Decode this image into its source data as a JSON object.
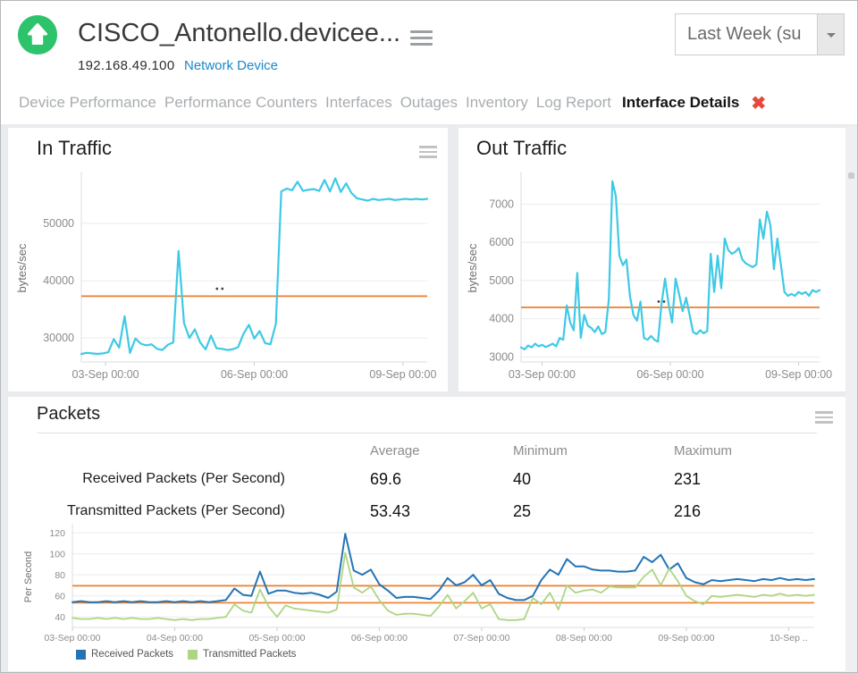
{
  "header": {
    "title": "CISCO_Antonello.devicee...",
    "ip": "192.168.49.100",
    "device_type_link": "Network Device",
    "time_range_value": "Last Week (su",
    "status_color": "#2dc36a",
    "close_icon": "✖"
  },
  "nav": {
    "items": [
      "Device Performance",
      "Performance Counters",
      "Interfaces",
      "Outages",
      "Inventory",
      "Log Report"
    ],
    "active": "Interface Details"
  },
  "packets_table": {
    "title": "Packets",
    "columns": [
      "Average",
      "Minimum",
      "Maximum"
    ],
    "rows": [
      {
        "label": "Received Packets (Per Second)",
        "average": "69.6",
        "minimum": "40",
        "maximum": "231"
      },
      {
        "label": "Transmitted Packets (Per Second)",
        "average": "53.43",
        "minimum": "25",
        "maximum": "216"
      }
    ]
  },
  "chart_data": [
    {
      "id": "in",
      "type": "line",
      "title": "In Traffic",
      "ylabel": "bytes/sec",
      "ymin": 25800,
      "ymax": 58600,
      "yticks": [
        30000,
        40000,
        50000
      ],
      "xticks": [
        {
          "label": "03-Sep 00:00",
          "pos": 0.07
        },
        {
          "label": "06-Sep 00:00",
          "pos": 0.5
        },
        {
          "label": "09-Sep 00:00",
          "pos": 0.93
        }
      ],
      "grid": true,
      "avg_lines": [
        {
          "value": 37300,
          "color": "#ec7f2b"
        }
      ],
      "gap_dots": {
        "pos": 0.4,
        "value": 38600
      },
      "series": [
        {
          "name": "In Traffic",
          "color": "#3ec9e6",
          "width": 2.2,
          "values": [
            27200,
            27400,
            27300,
            27200,
            27300,
            27500,
            29800,
            28300,
            33800,
            27400,
            29900,
            29000,
            28700,
            28900,
            28100,
            27900,
            28800,
            29200,
            45200,
            32600,
            30000,
            31500,
            29200,
            28000,
            30400,
            28200,
            28100,
            27900,
            28000,
            28400,
            30700,
            32300,
            29900,
            31200,
            29100,
            28900,
            32500,
            55600,
            56100,
            55800,
            57300,
            55700,
            55900,
            56000,
            55700,
            57600,
            55600,
            57900,
            55500,
            57000,
            55300,
            54400,
            54200,
            54000,
            54300,
            54100,
            54200,
            54300,
            54100,
            54200,
            54300,
            54200,
            54300,
            54200,
            54300
          ]
        }
      ]
    },
    {
      "id": "out",
      "type": "line",
      "title": "Out Traffic",
      "ylabel": "bytes/sec",
      "ymin": 2870,
      "ymax": 7780,
      "yticks": [
        3000,
        4000,
        5000,
        6000,
        7000
      ],
      "xticks": [
        {
          "label": "03-Sep 00:00",
          "pos": 0.07
        },
        {
          "label": "06-Sep 00:00",
          "pos": 0.5
        },
        {
          "label": "09-Sep 00:00",
          "pos": 0.93
        }
      ],
      "grid": true,
      "avg_lines": [
        {
          "value": 4300,
          "color": "#ec7f2b"
        }
      ],
      "gap_dots": {
        "pos": 0.47,
        "value": 4450
      },
      "series": [
        {
          "name": "Out Traffic",
          "color": "#3ec9e6",
          "width": 2.2,
          "values": [
            3250,
            3200,
            3300,
            3250,
            3350,
            3280,
            3320,
            3260,
            3300,
            3350,
            3280,
            3500,
            3450,
            4350,
            3900,
            3700,
            5200,
            3500,
            4100,
            3820,
            3760,
            3650,
            3800,
            3600,
            3650,
            4500,
            7600,
            7200,
            5650,
            5400,
            5550,
            4600,
            4100,
            3950,
            4450,
            3500,
            3450,
            3550,
            3450,
            3400,
            4400,
            5050,
            4400,
            3900,
            5050,
            4650,
            4200,
            4550,
            4100,
            3650,
            3600,
            3700,
            3620,
            3680,
            5700,
            4700,
            5650,
            4800,
            6100,
            5800,
            5700,
            5750,
            5850,
            5550,
            5450,
            5400,
            5350,
            5420,
            6600,
            6100,
            6800,
            6450,
            5300,
            6100,
            5400,
            4700,
            4600,
            4650,
            4600,
            4700,
            4650,
            4700,
            4600,
            4750,
            4700,
            4750
          ]
        }
      ]
    },
    {
      "id": "pk",
      "type": "line",
      "title": "Packets",
      "ylabel": "Per Second",
      "ymin": 30,
      "ymax": 126,
      "yticks": [
        40,
        60,
        80,
        100,
        120
      ],
      "xticks": [
        {
          "label": "03-Sep 00:00",
          "pos": 0
        },
        {
          "label": "04-Sep 00:00",
          "pos": 0.1379
        },
        {
          "label": "05-Sep 00:00",
          "pos": 0.2759
        },
        {
          "label": "06-Sep 00:00",
          "pos": 0.4138
        },
        {
          "label": "07-Sep 00:00",
          "pos": 0.5517
        },
        {
          "label": "08-Sep 00:00",
          "pos": 0.6897
        },
        {
          "label": "09-Sep 00:00",
          "pos": 0.8276
        },
        {
          "label": "10-Sep ..",
          "pos": 0.9655
        }
      ],
      "grid": true,
      "avg_lines": [
        {
          "value": 69.6,
          "color": "#ec7f2b"
        },
        {
          "value": 53.43,
          "color": "#ec7f2b"
        }
      ],
      "legend_position": "bottom-left",
      "series": [
        {
          "name": "Received Packets",
          "color": "#2474b5",
          "width": 2,
          "values": [
            54,
            55,
            54,
            54,
            55,
            54,
            55,
            54,
            55,
            54,
            54,
            55,
            54,
            55,
            54,
            55,
            54,
            55,
            56,
            67,
            61,
            60,
            83,
            62,
            65,
            65,
            63,
            62,
            63,
            61,
            58,
            64,
            119,
            84,
            80,
            85,
            71,
            65,
            58,
            59,
            59,
            58,
            57,
            65,
            77,
            70,
            73,
            80,
            70,
            75,
            62,
            58,
            56,
            56,
            60,
            75,
            85,
            80,
            95,
            88,
            88,
            85,
            84,
            84,
            83,
            83,
            84,
            97,
            92,
            99,
            85,
            91,
            77,
            73,
            71,
            75,
            74,
            75,
            76,
            75,
            74,
            76,
            75,
            77,
            75,
            76,
            75,
            76
          ]
        },
        {
          "name": "Transmitted Packets",
          "color": "#aed584",
          "width": 1.8,
          "values": [
            39,
            38,
            38,
            39,
            38,
            39,
            38,
            39,
            38,
            38,
            39,
            38,
            37,
            38,
            37,
            38,
            38,
            39,
            40,
            52,
            46,
            44,
            66,
            50,
            40,
            51,
            48,
            47,
            46,
            45,
            44,
            47,
            101,
            68,
            63,
            69,
            56,
            46,
            42,
            43,
            43,
            42,
            41,
            50,
            61,
            48,
            55,
            63,
            48,
            52,
            38,
            37,
            37,
            38,
            58,
            52,
            63,
            47,
            70,
            63,
            65,
            66,
            63,
            69,
            68,
            68,
            68,
            78,
            85,
            70,
            86,
            74,
            60,
            55,
            52,
            60,
            59,
            60,
            61,
            60,
            59,
            61,
            60,
            62,
            60,
            61,
            60,
            61
          ]
        }
      ]
    }
  ]
}
